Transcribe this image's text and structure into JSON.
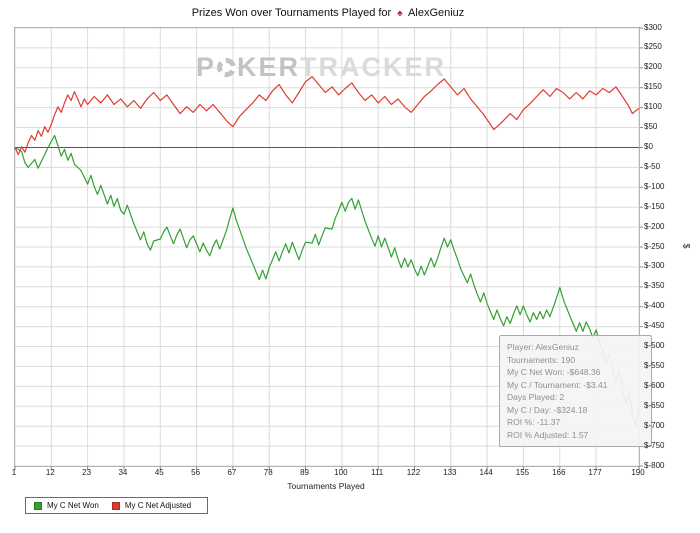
{
  "header": {
    "title_prefix": "Prizes Won over Tournaments Played for",
    "player": "AlexGeniuz",
    "suit_glyph": "♠"
  },
  "watermark": {
    "p": "P",
    "ker": "KER",
    "tracker": "TRACKER"
  },
  "tooltip": {
    "lines": [
      "Player: AlexGeniuz",
      "Tournaments: 190",
      "My C Net Won: -$648.36",
      "My C / Tournament: -$3.41",
      "Days Played: 2",
      "My C / Day: -$324.18",
      "ROI %: -11.37",
      "ROI % Adjusted: 1.57"
    ]
  },
  "chart_data": {
    "type": "line",
    "title": "Prizes Won over Tournaments Played for AlexGeniuz",
    "xlabel": "Tournaments Played",
    "ylabel": "$",
    "xlim": [
      1,
      190
    ],
    "ylim": [
      -800,
      300
    ],
    "y_tick_step": 50,
    "x_ticks": [
      1,
      12,
      23,
      34,
      45,
      56,
      67,
      78,
      89,
      100,
      111,
      122,
      133,
      144,
      155,
      166,
      177,
      190
    ],
    "grid": true,
    "legend_position": "bottom-left",
    "grid_color": "#dcdcdc",
    "zero_line_color": "#555555",
    "border_color": "#8a8a8a",
    "series": [
      {
        "name": "My C Net Won",
        "color": "#33a033",
        "points": [
          [
            1,
            0
          ],
          [
            3,
            -10
          ],
          [
            4,
            -38
          ],
          [
            5,
            -50
          ],
          [
            7,
            -30
          ],
          [
            8,
            -52
          ],
          [
            9,
            -35
          ],
          [
            11,
            0
          ],
          [
            13,
            30
          ],
          [
            14,
            5
          ],
          [
            15,
            -22
          ],
          [
            16,
            -5
          ],
          [
            17,
            -32
          ],
          [
            18,
            -15
          ],
          [
            19,
            -42
          ],
          [
            21,
            -58
          ],
          [
            23,
            -92
          ],
          [
            24,
            -70
          ],
          [
            25,
            -98
          ],
          [
            26,
            -118
          ],
          [
            27,
            -95
          ],
          [
            29,
            -142
          ],
          [
            30,
            -120
          ],
          [
            31,
            -148
          ],
          [
            32,
            -128
          ],
          [
            33,
            -158
          ],
          [
            34,
            -168
          ],
          [
            35,
            -145
          ],
          [
            37,
            -192
          ],
          [
            39,
            -232
          ],
          [
            40,
            -212
          ],
          [
            41,
            -242
          ],
          [
            42,
            -258
          ],
          [
            43,
            -235
          ],
          [
            45,
            -230
          ],
          [
            46,
            -212
          ],
          [
            47,
            -200
          ],
          [
            49,
            -242
          ],
          [
            50,
            -220
          ],
          [
            51,
            -205
          ],
          [
            53,
            -252
          ],
          [
            54,
            -232
          ],
          [
            55,
            -222
          ],
          [
            57,
            -262
          ],
          [
            58,
            -240
          ],
          [
            59,
            -258
          ],
          [
            60,
            -272
          ],
          [
            61,
            -248
          ],
          [
            62,
            -232
          ],
          [
            63,
            -255
          ],
          [
            65,
            -210
          ],
          [
            66,
            -180
          ],
          [
            67,
            -152
          ],
          [
            68,
            -182
          ],
          [
            69,
            -205
          ],
          [
            71,
            -252
          ],
          [
            73,
            -292
          ],
          [
            75,
            -332
          ],
          [
            76,
            -308
          ],
          [
            77,
            -330
          ],
          [
            78,
            -302
          ],
          [
            79,
            -282
          ],
          [
            80,
            -262
          ],
          [
            81,
            -285
          ],
          [
            82,
            -262
          ],
          [
            83,
            -242
          ],
          [
            84,
            -265
          ],
          [
            85,
            -238
          ],
          [
            86,
            -260
          ],
          [
            87,
            -282
          ],
          [
            88,
            -258
          ],
          [
            89,
            -238
          ],
          [
            91,
            -240
          ],
          [
            92,
            -218
          ],
          [
            93,
            -245
          ],
          [
            94,
            -222
          ],
          [
            95,
            -202
          ],
          [
            97,
            -205
          ],
          [
            98,
            -178
          ],
          [
            99,
            -158
          ],
          [
            100,
            -138
          ],
          [
            101,
            -160
          ],
          [
            102,
            -138
          ],
          [
            103,
            -128
          ],
          [
            104,
            -155
          ],
          [
            105,
            -132
          ],
          [
            107,
            -185
          ],
          [
            109,
            -228
          ],
          [
            110,
            -248
          ],
          [
            111,
            -222
          ],
          [
            112,
            -250
          ],
          [
            113,
            -228
          ],
          [
            115,
            -275
          ],
          [
            116,
            -252
          ],
          [
            117,
            -280
          ],
          [
            118,
            -302
          ],
          [
            119,
            -278
          ],
          [
            120,
            -300
          ],
          [
            121,
            -282
          ],
          [
            122,
            -305
          ],
          [
            123,
            -322
          ],
          [
            124,
            -298
          ],
          [
            125,
            -320
          ],
          [
            127,
            -278
          ],
          [
            128,
            -300
          ],
          [
            129,
            -278
          ],
          [
            130,
            -252
          ],
          [
            131,
            -228
          ],
          [
            132,
            -250
          ],
          [
            133,
            -232
          ],
          [
            134,
            -258
          ],
          [
            135,
            -280
          ],
          [
            136,
            -305
          ],
          [
            137,
            -322
          ],
          [
            138,
            -340
          ],
          [
            139,
            -318
          ],
          [
            140,
            -345
          ],
          [
            141,
            -368
          ],
          [
            142,
            -388
          ],
          [
            143,
            -365
          ],
          [
            144,
            -392
          ],
          [
            145,
            -412
          ],
          [
            146,
            -432
          ],
          [
            147,
            -408
          ],
          [
            148,
            -430
          ],
          [
            149,
            -448
          ],
          [
            150,
            -425
          ],
          [
            151,
            -442
          ],
          [
            152,
            -418
          ],
          [
            153,
            -398
          ],
          [
            154,
            -420
          ],
          [
            155,
            -398
          ],
          [
            156,
            -420
          ],
          [
            157,
            -438
          ],
          [
            158,
            -415
          ],
          [
            159,
            -432
          ],
          [
            160,
            -412
          ],
          [
            161,
            -430
          ],
          [
            162,
            -408
          ],
          [
            163,
            -425
          ],
          [
            164,
            -402
          ],
          [
            165,
            -378
          ],
          [
            166,
            -352
          ],
          [
            167,
            -380
          ],
          [
            168,
            -402
          ],
          [
            169,
            -422
          ],
          [
            170,
            -442
          ],
          [
            171,
            -462
          ],
          [
            172,
            -440
          ],
          [
            173,
            -462
          ],
          [
            174,
            -438
          ],
          [
            175,
            -455
          ],
          [
            176,
            -478
          ],
          [
            177,
            -458
          ],
          [
            178,
            -488
          ],
          [
            179,
            -512
          ],
          [
            180,
            -542
          ],
          [
            181,
            -518
          ],
          [
            182,
            -558
          ],
          [
            183,
            -588
          ],
          [
            184,
            -562
          ],
          [
            185,
            -608
          ],
          [
            186,
            -642
          ],
          [
            187,
            -615
          ],
          [
            188,
            -668
          ],
          [
            189,
            -700
          ],
          [
            190,
            -648.36
          ]
        ]
      },
      {
        "name": "My C Net Adjusted",
        "color": "#e03a30",
        "points": [
          [
            1,
            0
          ],
          [
            2,
            -18
          ],
          [
            3,
            2
          ],
          [
            4,
            -12
          ],
          [
            5,
            12
          ],
          [
            6,
            30
          ],
          [
            7,
            18
          ],
          [
            8,
            42
          ],
          [
            9,
            28
          ],
          [
            10,
            52
          ],
          [
            11,
            38
          ],
          [
            12,
            58
          ],
          [
            13,
            82
          ],
          [
            14,
            102
          ],
          [
            15,
            88
          ],
          [
            16,
            112
          ],
          [
            17,
            132
          ],
          [
            18,
            118
          ],
          [
            19,
            140
          ],
          [
            20,
            122
          ],
          [
            21,
            102
          ],
          [
            22,
            122
          ],
          [
            23,
            108
          ],
          [
            25,
            128
          ],
          [
            27,
            112
          ],
          [
            29,
            132
          ],
          [
            31,
            108
          ],
          [
            33,
            122
          ],
          [
            35,
            102
          ],
          [
            37,
            118
          ],
          [
            39,
            98
          ],
          [
            41,
            122
          ],
          [
            43,
            138
          ],
          [
            45,
            118
          ],
          [
            47,
            132
          ],
          [
            49,
            108
          ],
          [
            51,
            85
          ],
          [
            53,
            102
          ],
          [
            55,
            88
          ],
          [
            57,
            108
          ],
          [
            59,
            92
          ],
          [
            61,
            108
          ],
          [
            63,
            88
          ],
          [
            65,
            68
          ],
          [
            67,
            52
          ],
          [
            69,
            78
          ],
          [
            71,
            95
          ],
          [
            73,
            112
          ],
          [
            75,
            132
          ],
          [
            77,
            118
          ],
          [
            79,
            142
          ],
          [
            81,
            158
          ],
          [
            83,
            132
          ],
          [
            85,
            112
          ],
          [
            87,
            138
          ],
          [
            89,
            165
          ],
          [
            91,
            178
          ],
          [
            93,
            158
          ],
          [
            95,
            138
          ],
          [
            97,
            152
          ],
          [
            99,
            132
          ],
          [
            101,
            148
          ],
          [
            103,
            162
          ],
          [
            105,
            138
          ],
          [
            107,
            118
          ],
          [
            109,
            132
          ],
          [
            111,
            112
          ],
          [
            113,
            128
          ],
          [
            115,
            108
          ],
          [
            117,
            122
          ],
          [
            119,
            102
          ],
          [
            121,
            88
          ],
          [
            123,
            108
          ],
          [
            125,
            128
          ],
          [
            127,
            142
          ],
          [
            129,
            158
          ],
          [
            131,
            172
          ],
          [
            133,
            152
          ],
          [
            135,
            132
          ],
          [
            137,
            148
          ],
          [
            139,
            122
          ],
          [
            141,
            102
          ],
          [
            143,
            82
          ],
          [
            145,
            58
          ],
          [
            146,
            45
          ],
          [
            147,
            52
          ],
          [
            149,
            68
          ],
          [
            151,
            85
          ],
          [
            153,
            70
          ],
          [
            155,
            95
          ],
          [
            157,
            110
          ],
          [
            159,
            128
          ],
          [
            161,
            145
          ],
          [
            163,
            128
          ],
          [
            165,
            148
          ],
          [
            167,
            138
          ],
          [
            169,
            122
          ],
          [
            171,
            138
          ],
          [
            173,
            122
          ],
          [
            175,
            142
          ],
          [
            177,
            132
          ],
          [
            179,
            148
          ],
          [
            181,
            138
          ],
          [
            183,
            152
          ],
          [
            185,
            128
          ],
          [
            187,
            102
          ],
          [
            188,
            85
          ],
          [
            189,
            92
          ],
          [
            190,
            98
          ]
        ]
      }
    ]
  }
}
